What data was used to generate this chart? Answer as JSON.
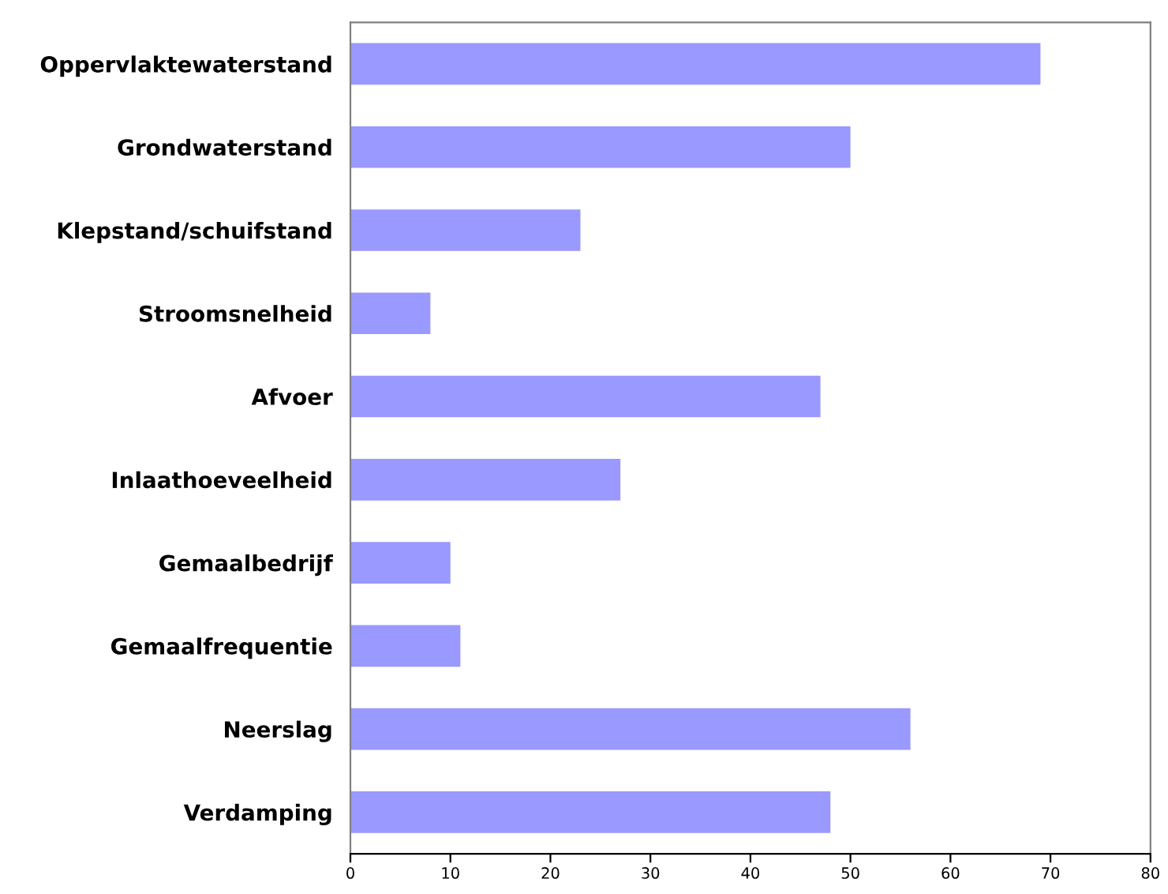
{
  "chart_data": {
    "type": "bar",
    "orientation": "horizontal",
    "categories": [
      "Oppervlaktewaterstand",
      "Grondwaterstand",
      "Klepstand/schuifstand",
      "Stroomsnelheid",
      "Afvoer",
      "Inlaathoeveelheid",
      "Gemaalbedrijf",
      "Gemaalfrequentie",
      "Neerslag",
      "Verdamping"
    ],
    "values": [
      69,
      50,
      23,
      8,
      47,
      27,
      10,
      11,
      56,
      48
    ],
    "color": "#9999ff",
    "xlim": [
      0,
      80
    ],
    "xticks": [
      0,
      10,
      20,
      30,
      40,
      50,
      60,
      70,
      80
    ],
    "grid": false,
    "legend": false
  }
}
